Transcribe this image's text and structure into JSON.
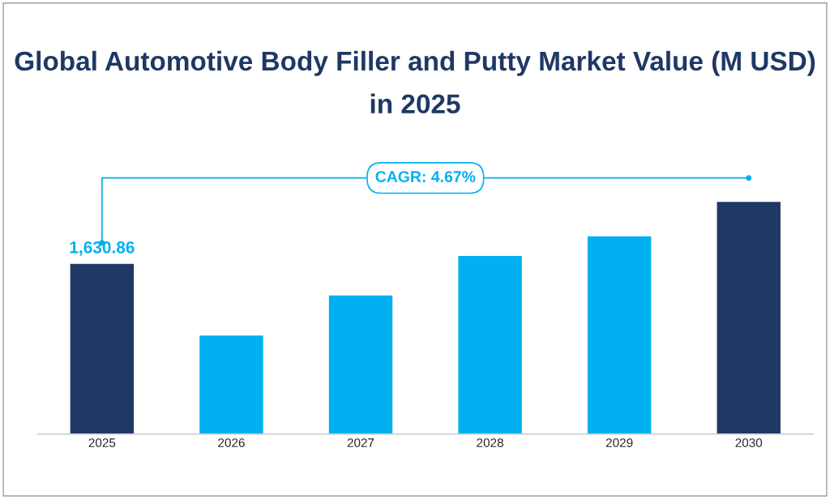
{
  "chart_data": {
    "type": "bar",
    "title": "Global Automotive Body Filler and Putty Market Value (M USD) in 2025",
    "categories": [
      "2025",
      "2026",
      "2027",
      "2028",
      "2029",
      "2030"
    ],
    "values": [
      1630.86,
      947,
      1330,
      1706,
      1894,
      2224
    ],
    "colors": [
      "#1f3864",
      "#00b0f0",
      "#00b0f0",
      "#00b0f0",
      "#00b0f0",
      "#1f3864"
    ],
    "value_labels": [
      "1,630.86",
      null,
      null,
      null,
      null,
      null
    ],
    "tick_labels": "x",
    "annotations": [
      "CAGR: 4.67%"
    ],
    "grid": false,
    "legend": false
  }
}
